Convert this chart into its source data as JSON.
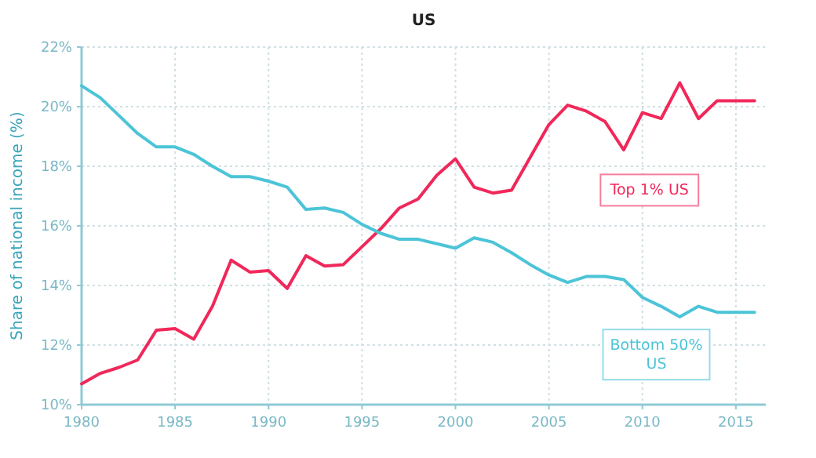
{
  "chart_data": {
    "type": "line",
    "title": "US",
    "ylabel": "Share of national income (%)",
    "x": [
      1980,
      1981,
      1982,
      1983,
      1984,
      1985,
      1986,
      1987,
      1988,
      1989,
      1990,
      1991,
      1992,
      1993,
      1994,
      1995,
      1996,
      1997,
      1998,
      1999,
      2000,
      2001,
      2002,
      2003,
      2004,
      2005,
      2006,
      2007,
      2008,
      2009,
      2010,
      2011,
      2012,
      2013,
      2014,
      2015,
      2016
    ],
    "series": [
      {
        "name": "Top 1% US",
        "color": "#f0285a",
        "values": [
          10.7,
          11.05,
          11.25,
          11.5,
          12.5,
          12.55,
          12.2,
          13.3,
          14.85,
          14.45,
          14.5,
          13.9,
          15.0,
          14.65,
          14.7,
          15.3,
          15.9,
          16.6,
          16.9,
          17.7,
          18.25,
          17.3,
          17.1,
          17.2,
          18.3,
          19.4,
          20.05,
          19.85,
          19.5,
          18.55,
          19.8,
          19.6,
          20.8,
          19.6,
          20.2,
          20.2,
          20.2
        ]
      },
      {
        "name": "Bottom 50% US",
        "color": "#4cc4d8",
        "values": [
          20.7,
          20.3,
          19.7,
          19.1,
          18.65,
          18.65,
          18.4,
          18.0,
          17.65,
          17.65,
          17.5,
          17.3,
          16.55,
          16.6,
          16.45,
          16.05,
          15.75,
          15.55,
          15.55,
          15.4,
          15.25,
          15.6,
          15.45,
          15.1,
          14.7,
          14.35,
          14.1,
          14.3,
          14.3,
          14.2,
          13.6,
          13.3,
          12.95,
          13.3,
          13.1,
          13.1,
          13.1
        ]
      }
    ],
    "xlim": [
      1980,
      2016.6
    ],
    "xticks": [
      1980,
      1985,
      1990,
      1995,
      2000,
      2005,
      2010,
      2015
    ],
    "ylim": [
      10,
      22
    ],
    "yticks": [
      {
        "value": 10,
        "label": "10%"
      },
      {
        "value": 12,
        "label": "12%"
      },
      {
        "value": 14,
        "label": "14%"
      },
      {
        "value": 16,
        "label": "16%"
      },
      {
        "value": 18,
        "label": "18%"
      },
      {
        "value": 20,
        "label": "20%"
      },
      {
        "value": 22,
        "label": "22%"
      }
    ],
    "grid": true,
    "legend": false,
    "marker": "none",
    "line_style": "solid"
  }
}
